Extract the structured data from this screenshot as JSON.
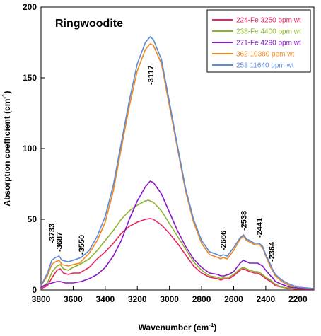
{
  "chart_data": {
    "type": "line",
    "title": "Ringwoodite",
    "xlabel": "Wavenumber (cm-1)",
    "ylabel": "Absorption coefficient (cm-1)",
    "xlim": [
      3800,
      2100
    ],
    "ylim": [
      0,
      200
    ],
    "x_reversed": true,
    "x_ticks": [
      3800,
      3600,
      3400,
      3200,
      3000,
      2800,
      2600,
      2400,
      2200
    ],
    "y_ticks": [
      0,
      50,
      100,
      150,
      200
    ],
    "grid": false,
    "legend_position": "top-right",
    "series": [
      {
        "name": "224-Fe 3250 ppm wt",
        "color": "#e8245e",
        "points": [
          [
            3800,
            1
          ],
          [
            3760,
            3
          ],
          [
            3730,
            9
          ],
          [
            3700,
            14
          ],
          [
            3680,
            15
          ],
          [
            3660,
            12
          ],
          [
            3630,
            11
          ],
          [
            3600,
            12
          ],
          [
            3560,
            12
          ],
          [
            3500,
            16
          ],
          [
            3450,
            22
          ],
          [
            3400,
            27
          ],
          [
            3350,
            33
          ],
          [
            3300,
            40
          ],
          [
            3250,
            45
          ],
          [
            3200,
            48
          ],
          [
            3150,
            50
          ],
          [
            3120,
            50.5
          ],
          [
            3100,
            50
          ],
          [
            3050,
            46
          ],
          [
            3000,
            40
          ],
          [
            2950,
            33
          ],
          [
            2900,
            25
          ],
          [
            2850,
            17
          ],
          [
            2800,
            12
          ],
          [
            2750,
            9
          ],
          [
            2700,
            8
          ],
          [
            2680,
            7
          ],
          [
            2660,
            8
          ],
          [
            2630,
            8
          ],
          [
            2600,
            10
          ],
          [
            2560,
            14
          ],
          [
            2540,
            15
          ],
          [
            2520,
            14
          ],
          [
            2500,
            13
          ],
          [
            2470,
            12
          ],
          [
            2450,
            12
          ],
          [
            2420,
            10
          ],
          [
            2400,
            8
          ],
          [
            2370,
            6
          ],
          [
            2360,
            5
          ],
          [
            2340,
            3
          ],
          [
            2300,
            2
          ],
          [
            2250,
            1
          ],
          [
            2200,
            0.5
          ],
          [
            2150,
            0.5
          ],
          [
            2100,
            0.5
          ]
        ]
      },
      {
        "name": "238-Fe 4400 ppm wt",
        "color": "#8db32e",
        "points": [
          [
            3800,
            2
          ],
          [
            3760,
            5
          ],
          [
            3730,
            13
          ],
          [
            3700,
            17
          ],
          [
            3680,
            18
          ],
          [
            3660,
            15
          ],
          [
            3630,
            14
          ],
          [
            3600,
            16
          ],
          [
            3560,
            18
          ],
          [
            3500,
            22
          ],
          [
            3450,
            28
          ],
          [
            3400,
            35
          ],
          [
            3350,
            42
          ],
          [
            3300,
            50
          ],
          [
            3250,
            56
          ],
          [
            3200,
            60
          ],
          [
            3150,
            63
          ],
          [
            3130,
            63.5
          ],
          [
            3100,
            62
          ],
          [
            3050,
            56
          ],
          [
            3000,
            47
          ],
          [
            2950,
            38
          ],
          [
            2900,
            29
          ],
          [
            2850,
            20
          ],
          [
            2800,
            14
          ],
          [
            2750,
            10
          ],
          [
            2700,
            9
          ],
          [
            2680,
            8
          ],
          [
            2660,
            9
          ],
          [
            2630,
            9
          ],
          [
            2600,
            11
          ],
          [
            2560,
            15
          ],
          [
            2540,
            16
          ],
          [
            2520,
            15
          ],
          [
            2500,
            14
          ],
          [
            2470,
            13
          ],
          [
            2450,
            13
          ],
          [
            2420,
            11
          ],
          [
            2400,
            9
          ],
          [
            2370,
            7
          ],
          [
            2360,
            6
          ],
          [
            2340,
            4
          ],
          [
            2300,
            2
          ],
          [
            2250,
            1.5
          ],
          [
            2200,
            1
          ],
          [
            2150,
            1
          ],
          [
            2100,
            1
          ]
        ]
      },
      {
        "name": "271-Fe 4290 ppm wt",
        "color": "#8b18c8",
        "points": [
          [
            3800,
            2
          ],
          [
            3760,
            4
          ],
          [
            3730,
            5
          ],
          [
            3700,
            6
          ],
          [
            3680,
            6
          ],
          [
            3650,
            5
          ],
          [
            3600,
            5
          ],
          [
            3550,
            6
          ],
          [
            3500,
            8
          ],
          [
            3450,
            11
          ],
          [
            3400,
            16
          ],
          [
            3350,
            24
          ],
          [
            3300,
            35
          ],
          [
            3250,
            50
          ],
          [
            3200,
            63
          ],
          [
            3150,
            73
          ],
          [
            3120,
            77
          ],
          [
            3100,
            76
          ],
          [
            3050,
            68
          ],
          [
            3000,
            55
          ],
          [
            2950,
            42
          ],
          [
            2900,
            31
          ],
          [
            2850,
            22
          ],
          [
            2800,
            16
          ],
          [
            2750,
            12
          ],
          [
            2700,
            11
          ],
          [
            2680,
            10
          ],
          [
            2660,
            10
          ],
          [
            2630,
            11
          ],
          [
            2600,
            13
          ],
          [
            2560,
            19
          ],
          [
            2540,
            21
          ],
          [
            2520,
            20
          ],
          [
            2500,
            19
          ],
          [
            2470,
            19
          ],
          [
            2450,
            19
          ],
          [
            2420,
            17
          ],
          [
            2400,
            14
          ],
          [
            2370,
            10
          ],
          [
            2360,
            9
          ],
          [
            2340,
            6
          ],
          [
            2300,
            4
          ],
          [
            2250,
            2
          ],
          [
            2200,
            1.5
          ],
          [
            2150,
            1
          ],
          [
            2100,
            1
          ]
        ]
      },
      {
        "name": "362 10380 ppm wt",
        "color": "#f0871e",
        "points": [
          [
            3800,
            3
          ],
          [
            3760,
            10
          ],
          [
            3733,
            18
          ],
          [
            3710,
            20
          ],
          [
            3687,
            21
          ],
          [
            3670,
            18
          ],
          [
            3630,
            17
          ],
          [
            3600,
            18
          ],
          [
            3560,
            19
          ],
          [
            3500,
            26
          ],
          [
            3450,
            35
          ],
          [
            3400,
            48
          ],
          [
            3350,
            70
          ],
          [
            3300,
            100
          ],
          [
            3250,
            130
          ],
          [
            3200,
            155
          ],
          [
            3150,
            170
          ],
          [
            3120,
            174
          ],
          [
            3100,
            173
          ],
          [
            3050,
            160
          ],
          [
            3000,
            130
          ],
          [
            2950,
            100
          ],
          [
            2900,
            70
          ],
          [
            2850,
            48
          ],
          [
            2800,
            33
          ],
          [
            2750,
            25
          ],
          [
            2700,
            23
          ],
          [
            2680,
            22
          ],
          [
            2666,
            23
          ],
          [
            2640,
            22
          ],
          [
            2600,
            28
          ],
          [
            2560,
            36
          ],
          [
            2538,
            38
          ],
          [
            2520,
            35
          ],
          [
            2500,
            34
          ],
          [
            2470,
            32
          ],
          [
            2441,
            32
          ],
          [
            2420,
            30
          ],
          [
            2400,
            24
          ],
          [
            2370,
            16
          ],
          [
            2364,
            15
          ],
          [
            2340,
            10
          ],
          [
            2300,
            6
          ],
          [
            2250,
            3
          ],
          [
            2200,
            2
          ],
          [
            2150,
            1.5
          ],
          [
            2100,
            1
          ]
        ]
      },
      {
        "name": "253 11640 ppm wt",
        "color": "#5b8ad8",
        "points": [
          [
            3800,
            3
          ],
          [
            3760,
            12
          ],
          [
            3733,
            21
          ],
          [
            3710,
            23
          ],
          [
            3687,
            24
          ],
          [
            3670,
            21
          ],
          [
            3630,
            20
          ],
          [
            3600,
            21
          ],
          [
            3550,
            23
          ],
          [
            3500,
            28
          ],
          [
            3450,
            38
          ],
          [
            3400,
            52
          ],
          [
            3350,
            74
          ],
          [
            3300,
            104
          ],
          [
            3250,
            134
          ],
          [
            3200,
            160
          ],
          [
            3150,
            175
          ],
          [
            3120,
            179
          ],
          [
            3100,
            177
          ],
          [
            3050,
            163
          ],
          [
            3000,
            133
          ],
          [
            2950,
            102
          ],
          [
            2900,
            72
          ],
          [
            2850,
            50
          ],
          [
            2800,
            35
          ],
          [
            2750,
            27
          ],
          [
            2700,
            25
          ],
          [
            2680,
            24
          ],
          [
            2666,
            25
          ],
          [
            2640,
            24
          ],
          [
            2600,
            30
          ],
          [
            2560,
            37
          ],
          [
            2538,
            39
          ],
          [
            2520,
            36
          ],
          [
            2500,
            35
          ],
          [
            2470,
            33
          ],
          [
            2441,
            33
          ],
          [
            2420,
            31
          ],
          [
            2400,
            25
          ],
          [
            2370,
            18
          ],
          [
            2364,
            16
          ],
          [
            2340,
            11
          ],
          [
            2300,
            7
          ],
          [
            2250,
            4
          ],
          [
            2200,
            2
          ],
          [
            2150,
            1.5
          ],
          [
            2100,
            1
          ]
        ]
      }
    ],
    "annotations": [
      {
        "text": "-3733",
        "x": 3733,
        "y": 22,
        "ty": 33
      },
      {
        "text": "-3687",
        "x": 3687,
        "y": 25,
        "ty": 27
      },
      {
        "text": "-3550",
        "x": 3550,
        "y": 24,
        "ty": 25
      },
      {
        "text": "-3117",
        "x": 3117,
        "y": 175,
        "ty": 145
      },
      {
        "text": "-2666",
        "x": 2666,
        "y": 26,
        "ty": 28
      },
      {
        "text": "-2538",
        "x": 2538,
        "y": 40,
        "ty": 42
      },
      {
        "text": "-2441",
        "x": 2441,
        "y": 34,
        "ty": 37
      },
      {
        "text": "-2364",
        "x": 2364,
        "y": 17,
        "ty": 20
      }
    ]
  }
}
